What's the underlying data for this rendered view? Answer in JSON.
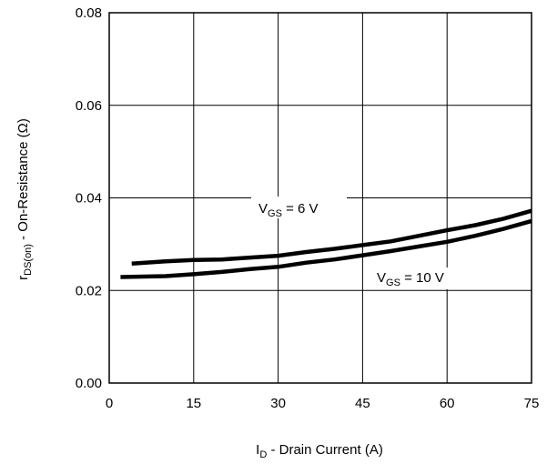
{
  "chart_data": {
    "type": "line",
    "title": "",
    "xlabel": {
      "main": "I",
      "sub": "D",
      "rest": " - Drain Current (A)"
    },
    "ylabel": {
      "main": "r",
      "sub": "DS(on)",
      "rest": " - On-Resistance (Ω)"
    },
    "xlim": [
      0,
      75
    ],
    "ylim": [
      0,
      0.08
    ],
    "xticks": [
      0,
      15,
      30,
      45,
      60,
      75
    ],
    "xtick_labels": [
      "0",
      "15",
      "30",
      "45",
      "60",
      "75"
    ],
    "yticks": [
      0,
      0.02,
      0.04,
      0.06,
      0.08
    ],
    "ytick_labels": [
      "0.00",
      "0.02",
      "0.04",
      "0.06",
      "0.08"
    ],
    "grid": true,
    "series": [
      {
        "name": "VGS = 6 V",
        "label": {
          "main": "V",
          "sub": "GS",
          "rest": " = 6 V"
        },
        "x": [
          4,
          10,
          15,
          20,
          25,
          30,
          35,
          40,
          45,
          50,
          55,
          60,
          65,
          70,
          75
        ],
        "y": [
          0.0258,
          0.0263,
          0.0266,
          0.0267,
          0.0271,
          0.0275,
          0.0283,
          0.029,
          0.0298,
          0.0306,
          0.0318,
          0.033,
          0.0341,
          0.0355,
          0.0372
        ]
      },
      {
        "name": "VGS = 10 V",
        "label": {
          "main": "V",
          "sub": "GS",
          "rest": " = 10 V"
        },
        "x": [
          2,
          10,
          15,
          20,
          25,
          30,
          35,
          40,
          45,
          50,
          55,
          60,
          65,
          70,
          75
        ],
        "y": [
          0.0229,
          0.0231,
          0.0235,
          0.024,
          0.0246,
          0.0251,
          0.026,
          0.0267,
          0.0276,
          0.0285,
          0.0295,
          0.0305,
          0.0318,
          0.0333,
          0.035
        ]
      }
    ]
  }
}
